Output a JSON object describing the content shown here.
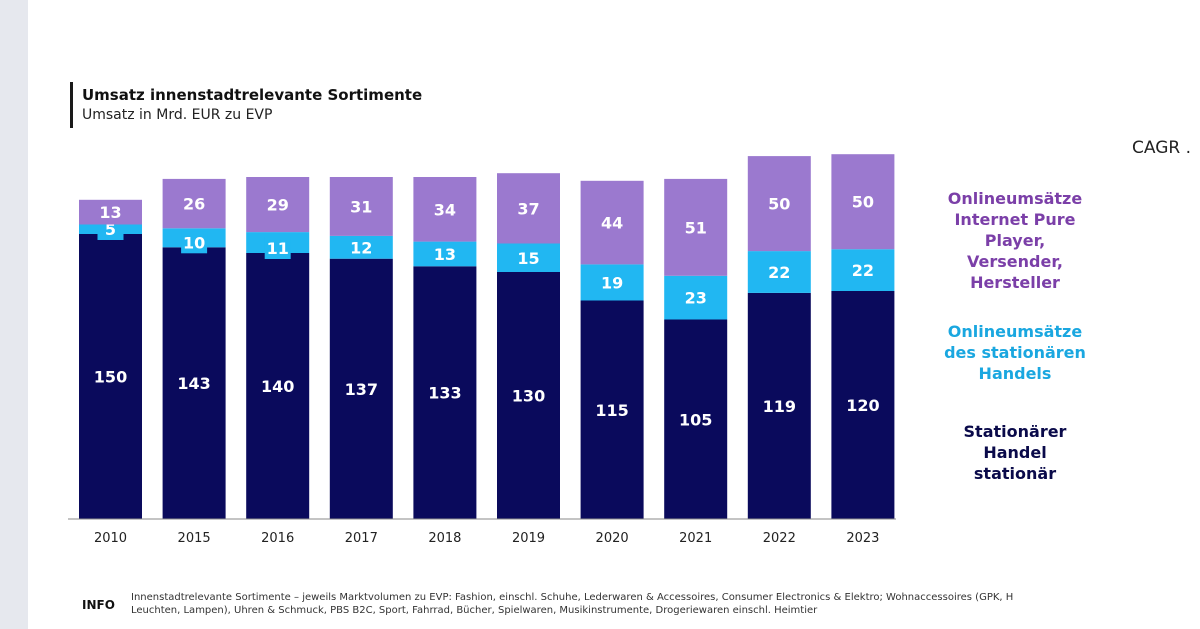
{
  "header": {
    "title": "Umsatz innenstadtrelevante Sortimente",
    "subtitle": "Umsatz in Mrd. EUR zu EVP",
    "cagr_label": "CAGR ."
  },
  "colors": {
    "stationary": "#0a0a5c",
    "online_stationary": "#21b7f2",
    "online_pure": "#9b79cf",
    "label": "#ffffff"
  },
  "chart_data": {
    "type": "bar",
    "stacked": true,
    "title": "Umsatz innenstadtrelevante Sortimente",
    "ylabel": "Umsatz in Mrd. EUR zu EVP",
    "categories": [
      "2010",
      "2015",
      "2016",
      "2017",
      "2018",
      "2019",
      "2020",
      "2021",
      "2022",
      "2023"
    ],
    "series": [
      {
        "name": "Stationärer Handel stationär",
        "key": "stationary",
        "values": [
          150,
          143,
          140,
          137,
          133,
          130,
          115,
          105,
          119,
          120
        ]
      },
      {
        "name": "Onlineumsätze des stationären Handels",
        "key": "online_stationary",
        "values": [
          5,
          10,
          11,
          12,
          13,
          15,
          19,
          23,
          22,
          22
        ]
      },
      {
        "name": "Onlineumsätze Internet Pure Player, Versender, Hersteller",
        "key": "online_pure",
        "values": [
          13,
          26,
          29,
          31,
          34,
          37,
          44,
          51,
          50,
          50
        ]
      }
    ],
    "ylim": [
      0,
      200
    ]
  },
  "legend": {
    "online_pure": "Onlineumsätze\nInternet Pure\nPlayer,\nVersender,\nHersteller",
    "online_stationary": "Onlineumsätze\ndes stationären\nHandels",
    "stationary": "Stationärer\nHandel\nstationär"
  },
  "footer": {
    "info_label": "INFO",
    "info_text": "Innenstadtrelevante Sortimente – jeweils Marktvolumen zu EVP: Fashion, einschl. Schuhe, Lederwaren & Accessoires,  Consumer Electronics & Elektro;  Wohnaccessoires (GPK, H\nLeuchten, Lampen), Uhren & Schmuck, PBS B2C, Sport, Fahrrad, Bücher, Spielwaren, Musikinstrumente, Drogeriewaren einschl. Heimtier"
  }
}
